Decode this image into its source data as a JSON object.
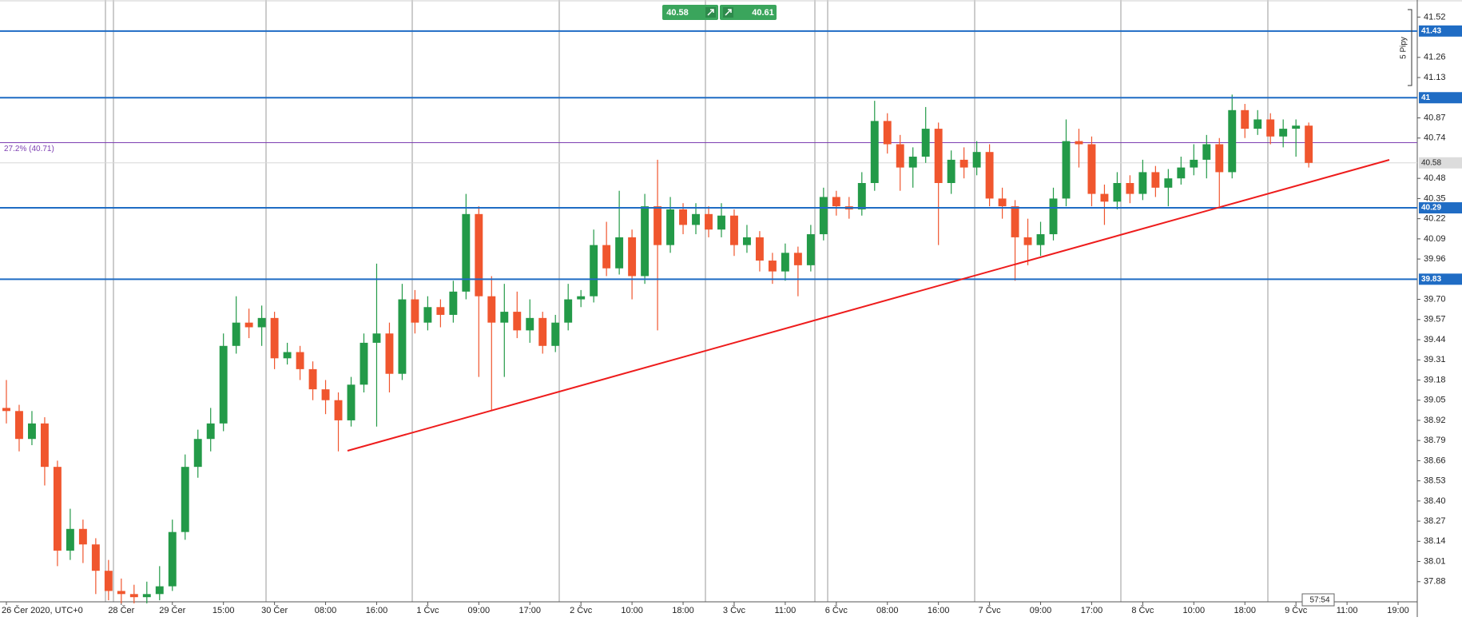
{
  "chart_data": {
    "type": "candlestick",
    "up_color": "#239a48",
    "down_color": "#f0562e",
    "categories": [
      "26 Čer 2020, UTC+0",
      null,
      null,
      null,
      null,
      null,
      null,
      null,
      null,
      "28 Čer",
      null,
      null,
      null,
      "29 Čer",
      null,
      null,
      null,
      "15:00",
      null,
      null,
      null,
      "30 Čer",
      null,
      null,
      null,
      "08:00",
      null,
      null,
      null,
      "16:00",
      null,
      null,
      null,
      "1 Čvc",
      null,
      null,
      null,
      "09:00",
      null,
      null,
      null,
      "17:00",
      null,
      null,
      null,
      "2 Čvc",
      null,
      null,
      null,
      "10:00",
      null,
      null,
      null,
      "18:00",
      null,
      null,
      null,
      "3 Čvc",
      null,
      null,
      null,
      "11:00",
      null,
      null,
      null,
      "6 Čvc",
      null,
      null,
      null,
      "08:00",
      null,
      null,
      null,
      "16:00",
      null,
      null,
      null,
      "7 Čvc",
      null,
      null,
      null,
      "09:00",
      null,
      null,
      null,
      "17:00",
      null,
      null,
      null,
      "8 Čvc",
      null,
      null,
      null,
      "10:00",
      null,
      null,
      null,
      "18:00",
      null,
      null,
      null,
      "9 Čvc",
      null,
      null,
      null,
      "11:00",
      null,
      null,
      null,
      "19:00",
      null
    ],
    "ohlc": [
      [
        39.0,
        39.18,
        38.9,
        38.98
      ],
      [
        38.98,
        39.02,
        38.72,
        38.8
      ],
      [
        38.8,
        38.98,
        38.76,
        38.9
      ],
      [
        38.9,
        38.94,
        38.5,
        38.62
      ],
      [
        38.62,
        38.66,
        37.98,
        38.08
      ],
      [
        38.08,
        38.35,
        38.02,
        38.22
      ],
      [
        38.22,
        38.28,
        38.0,
        38.12
      ],
      [
        38.12,
        38.16,
        37.8,
        37.95
      ],
      [
        37.95,
        38.02,
        37.76,
        37.82
      ],
      [
        37.82,
        37.9,
        37.74,
        37.8
      ],
      [
        37.8,
        37.86,
        37.74,
        37.78
      ],
      [
        37.78,
        37.88,
        37.74,
        37.8
      ],
      [
        37.8,
        37.98,
        37.76,
        37.85
      ],
      [
        37.85,
        38.28,
        37.82,
        38.2
      ],
      [
        38.2,
        38.7,
        38.15,
        38.62
      ],
      [
        38.62,
        38.86,
        38.55,
        38.8
      ],
      [
        38.8,
        39.0,
        38.72,
        38.9
      ],
      [
        38.9,
        39.48,
        38.85,
        39.4
      ],
      [
        39.4,
        39.72,
        39.35,
        39.55
      ],
      [
        39.55,
        39.64,
        39.45,
        39.52
      ],
      [
        39.52,
        39.66,
        39.4,
        39.58
      ],
      [
        39.58,
        39.62,
        39.25,
        39.32
      ],
      [
        39.32,
        39.42,
        39.28,
        39.36
      ],
      [
        39.36,
        39.4,
        39.18,
        39.25
      ],
      [
        39.25,
        39.3,
        39.05,
        39.12
      ],
      [
        39.12,
        39.18,
        38.96,
        39.05
      ],
      [
        39.05,
        39.1,
        38.72,
        38.92
      ],
      [
        38.92,
        39.2,
        38.88,
        39.15
      ],
      [
        39.15,
        39.48,
        39.1,
        39.42
      ],
      [
        39.42,
        39.93,
        38.88,
        39.48
      ],
      [
        39.48,
        39.55,
        39.1,
        39.22
      ],
      [
        39.22,
        39.8,
        39.18,
        39.7
      ],
      [
        39.7,
        39.76,
        39.48,
        39.55
      ],
      [
        39.55,
        39.72,
        39.5,
        39.65
      ],
      [
        39.65,
        39.7,
        39.52,
        39.6
      ],
      [
        39.6,
        39.82,
        39.55,
        39.75
      ],
      [
        39.75,
        40.38,
        39.7,
        40.25
      ],
      [
        40.25,
        40.3,
        39.2,
        39.72
      ],
      [
        39.72,
        39.85,
        38.98,
        39.55
      ],
      [
        39.55,
        39.8,
        39.2,
        39.62
      ],
      [
        39.62,
        39.75,
        39.45,
        39.5
      ],
      [
        39.5,
        39.7,
        39.42,
        39.58
      ],
      [
        39.58,
        39.62,
        39.35,
        39.4
      ],
      [
        39.4,
        39.6,
        39.36,
        39.55
      ],
      [
        39.55,
        39.8,
        39.5,
        39.7
      ],
      [
        39.7,
        39.76,
        39.65,
        39.72
      ],
      [
        39.72,
        40.15,
        39.68,
        40.05
      ],
      [
        40.05,
        40.2,
        39.85,
        39.9
      ],
      [
        39.9,
        40.4,
        39.86,
        40.1
      ],
      [
        40.1,
        40.15,
        39.7,
        39.85
      ],
      [
        39.85,
        40.38,
        39.8,
        40.3
      ],
      [
        40.3,
        40.6,
        39.5,
        40.05
      ],
      [
        40.05,
        40.36,
        40.0,
        40.28
      ],
      [
        40.28,
        40.32,
        40.12,
        40.18
      ],
      [
        40.18,
        40.32,
        40.12,
        40.25
      ],
      [
        40.25,
        40.3,
        40.1,
        40.15
      ],
      [
        40.15,
        40.32,
        40.1,
        40.24
      ],
      [
        40.24,
        40.28,
        39.98,
        40.05
      ],
      [
        40.05,
        40.18,
        40.0,
        40.1
      ],
      [
        40.1,
        40.14,
        39.88,
        39.95
      ],
      [
        39.95,
        40.0,
        39.8,
        39.88
      ],
      [
        39.88,
        40.06,
        39.82,
        40.0
      ],
      [
        40.0,
        40.04,
        39.72,
        39.92
      ],
      [
        39.92,
        40.18,
        39.88,
        40.12
      ],
      [
        40.12,
        40.42,
        40.08,
        40.36
      ],
      [
        40.36,
        40.4,
        40.24,
        40.3
      ],
      [
        40.3,
        40.36,
        40.22,
        40.28
      ],
      [
        40.28,
        40.52,
        40.24,
        40.45
      ],
      [
        40.45,
        40.98,
        40.4,
        40.85
      ],
      [
        40.85,
        40.9,
        40.64,
        40.7
      ],
      [
        40.7,
        40.76,
        40.4,
        40.55
      ],
      [
        40.55,
        40.68,
        40.42,
        40.62
      ],
      [
        40.62,
        40.94,
        40.58,
        40.8
      ],
      [
        40.8,
        40.84,
        40.05,
        40.45
      ],
      [
        40.45,
        40.66,
        40.38,
        40.6
      ],
      [
        40.6,
        40.68,
        40.48,
        40.55
      ],
      [
        40.55,
        40.72,
        40.5,
        40.65
      ],
      [
        40.65,
        40.7,
        40.3,
        40.35
      ],
      [
        40.35,
        40.42,
        40.22,
        40.3
      ],
      [
        40.3,
        40.34,
        39.82,
        40.1
      ],
      [
        40.1,
        40.22,
        39.92,
        40.05
      ],
      [
        40.05,
        40.2,
        39.98,
        40.12
      ],
      [
        40.12,
        40.42,
        40.08,
        40.35
      ],
      [
        40.35,
        40.86,
        40.3,
        40.72
      ],
      [
        40.72,
        40.8,
        40.55,
        40.7
      ],
      [
        40.7,
        40.75,
        40.3,
        40.38
      ],
      [
        40.38,
        40.44,
        40.18,
        40.33
      ],
      [
        40.33,
        40.52,
        40.28,
        40.45
      ],
      [
        40.45,
        40.5,
        40.32,
        40.38
      ],
      [
        40.38,
        40.6,
        40.34,
        40.52
      ],
      [
        40.52,
        40.56,
        40.36,
        40.42
      ],
      [
        40.42,
        40.54,
        40.3,
        40.48
      ],
      [
        40.48,
        40.62,
        40.44,
        40.55
      ],
      [
        40.55,
        40.7,
        40.5,
        40.6
      ],
      [
        40.6,
        40.76,
        40.48,
        40.7
      ],
      [
        40.7,
        40.74,
        40.3,
        40.52
      ],
      [
        40.52,
        41.02,
        40.48,
        40.92
      ],
      [
        40.92,
        40.96,
        40.74,
        40.8
      ],
      [
        40.8,
        40.92,
        40.76,
        40.86
      ],
      [
        40.86,
        40.9,
        40.7,
        40.75
      ],
      [
        40.75,
        40.86,
        40.68,
        40.8
      ],
      [
        40.8,
        40.86,
        40.62,
        40.82
      ],
      [
        40.82,
        40.84,
        40.55,
        40.58
      ],
      null,
      null,
      null,
      null,
      null,
      null,
      null,
      null
    ],
    "ylim": [
      37.75,
      41.63
    ],
    "yticks": [
      41.52,
      41.26,
      41.13,
      40.87,
      40.74,
      40.48,
      40.35,
      40.22,
      40.09,
      39.96,
      {
        "value": 39.7,
        "label": "39.70"
      },
      39.57,
      39.44,
      39.31,
      39.18,
      39.05,
      38.92,
      38.79,
      38.66,
      38.53,
      {
        "value": 38.4,
        "label": "38.40"
      },
      38.27,
      38.14,
      38.01,
      37.88
    ],
    "levels": [
      41.43,
      41,
      40.29,
      39.83
    ],
    "level_color": "#1f6cc4",
    "fib": {
      "label": "27.2% (40.71)",
      "value": 40.71,
      "color": "#7d3fb2"
    },
    "last_price": 40.58,
    "sell": 40.58,
    "buy": 40.61,
    "pips_label": "5 Pipy",
    "timer": "57:54"
  }
}
